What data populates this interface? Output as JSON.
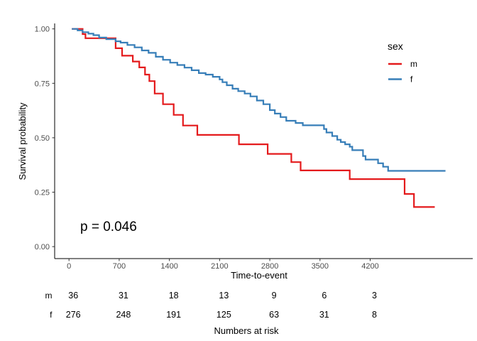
{
  "figure": {
    "p_value_label": "p = 0.046",
    "x_axis_title": "Time-to-event",
    "y_axis_title": "Survival probability"
  },
  "legend": {
    "title": "sex",
    "entries": [
      {
        "label": "m",
        "color": "#E41A1C"
      },
      {
        "label": "f",
        "color": "#377EB8"
      }
    ]
  },
  "chart_data": {
    "type": "line",
    "subtype": "kaplan-meier-step",
    "title": "",
    "xlabel": "Time-to-event",
    "ylabel": "Survival probability",
    "grid": false,
    "legend_position": "right",
    "p_value": "p = 0.046",
    "xlim": [
      -200,
      5630
    ],
    "ylim": [
      -0.055,
      1.025
    ],
    "x_ticks": [
      0,
      700,
      1400,
      2100,
      2800,
      3500,
      4200
    ],
    "y_ticks": [
      {
        "value": 0.0,
        "label": "0.00"
      },
      {
        "value": 0.25,
        "label": "0.25"
      },
      {
        "value": 0.5,
        "label": "0.50"
      },
      {
        "value": 0.75,
        "label": "0.75"
      },
      {
        "value": 1.0,
        "label": "1.00"
      }
    ],
    "series": [
      {
        "name": "m",
        "color": "#E41A1C",
        "end_time": 5100,
        "points": [
          [
            40,
            1.0
          ],
          [
            190,
            0.976
          ],
          [
            230,
            0.957
          ],
          [
            650,
            0.911
          ],
          [
            740,
            0.877
          ],
          [
            890,
            0.85
          ],
          [
            980,
            0.823
          ],
          [
            1060,
            0.79
          ],
          [
            1120,
            0.76
          ],
          [
            1195,
            0.703
          ],
          [
            1310,
            0.654
          ],
          [
            1460,
            0.605
          ],
          [
            1590,
            0.556
          ],
          [
            1790,
            0.513
          ],
          [
            2370,
            0.47
          ],
          [
            2770,
            0.426
          ],
          [
            3100,
            0.388
          ],
          [
            3230,
            0.35
          ],
          [
            3915,
            0.31
          ],
          [
            4680,
            0.242
          ],
          [
            4810,
            0.182
          ]
        ]
      },
      {
        "name": "f",
        "color": "#377EB8",
        "end_time": 5250,
        "points": [
          [
            40,
            1.0
          ],
          [
            120,
            0.993
          ],
          [
            190,
            0.985
          ],
          [
            270,
            0.978
          ],
          [
            340,
            0.971
          ],
          [
            420,
            0.96
          ],
          [
            520,
            0.953
          ],
          [
            650,
            0.943
          ],
          [
            720,
            0.937
          ],
          [
            815,
            0.926
          ],
          [
            915,
            0.915
          ],
          [
            1015,
            0.901
          ],
          [
            1110,
            0.89
          ],
          [
            1210,
            0.872
          ],
          [
            1310,
            0.858
          ],
          [
            1410,
            0.845
          ],
          [
            1510,
            0.834
          ],
          [
            1610,
            0.822
          ],
          [
            1710,
            0.81
          ],
          [
            1810,
            0.797
          ],
          [
            1905,
            0.79
          ],
          [
            2005,
            0.78
          ],
          [
            2100,
            0.768
          ],
          [
            2140,
            0.755
          ],
          [
            2200,
            0.741
          ],
          [
            2280,
            0.725
          ],
          [
            2360,
            0.714
          ],
          [
            2450,
            0.703
          ],
          [
            2530,
            0.69
          ],
          [
            2620,
            0.671
          ],
          [
            2710,
            0.654
          ],
          [
            2800,
            0.627
          ],
          [
            2870,
            0.611
          ],
          [
            2950,
            0.595
          ],
          [
            3030,
            0.578
          ],
          [
            3160,
            0.568
          ],
          [
            3260,
            0.557
          ],
          [
            3555,
            0.54
          ],
          [
            3590,
            0.524
          ],
          [
            3670,
            0.508
          ],
          [
            3740,
            0.491
          ],
          [
            3790,
            0.48
          ],
          [
            3850,
            0.47
          ],
          [
            3915,
            0.459
          ],
          [
            3950,
            0.443
          ],
          [
            4100,
            0.416
          ],
          [
            4135,
            0.4
          ],
          [
            4310,
            0.383
          ],
          [
            4380,
            0.367
          ],
          [
            4450,
            0.348
          ]
        ]
      }
    ]
  },
  "risk_table": {
    "title": "Numbers at risk",
    "time_points": [
      0,
      700,
      1400,
      2100,
      2800,
      3500,
      4200
    ],
    "rows": [
      {
        "label": "m",
        "counts": [
          36,
          31,
          18,
          13,
          9,
          6,
          3
        ]
      },
      {
        "label": "f",
        "counts": [
          276,
          248,
          191,
          125,
          63,
          31,
          8
        ]
      }
    ]
  }
}
